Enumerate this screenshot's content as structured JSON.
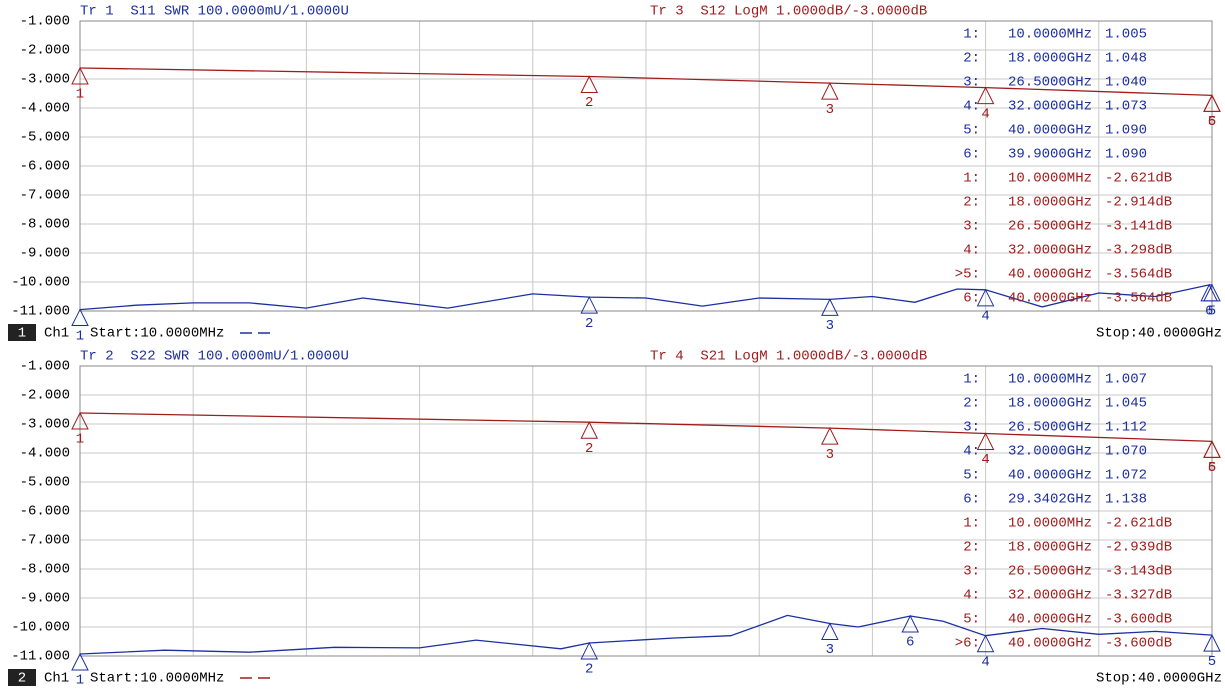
{
  "chart_data": [
    {
      "type": "line",
      "header_left": "Tr 1  S11 SWR 100.0000mU/1.0000U",
      "header_right": "Tr 3  S12 LogM 1.0000dB/-3.0000dB",
      "channel": "1",
      "channel_label": "Ch1",
      "start_label": "Start:10.0000MHz",
      "stop_label": "Stop:40.0000GHz",
      "xlim": [
        0.01,
        40
      ],
      "ylim": [
        -11,
        -1
      ],
      "y2lim": [
        1,
        2
      ],
      "yticks": [
        {
          "value": -1,
          "label": "-1.000"
        },
        {
          "value": -2,
          "label": "-2.000"
        },
        {
          "value": -3,
          "label": "-3.000"
        },
        {
          "value": -4,
          "label": "-4.000"
        },
        {
          "value": -5,
          "label": "-5.000"
        },
        {
          "value": -6,
          "label": "-6.000"
        },
        {
          "value": -7,
          "label": "-7.000"
        },
        {
          "value": -8,
          "label": "-8.000"
        },
        {
          "value": -9,
          "label": "-9.000"
        },
        {
          "value": -10,
          "label": "-10.000"
        },
        {
          "value": -11,
          "label": "-11.000"
        }
      ],
      "grid": true,
      "series": [
        {
          "color": "#1c2fa0",
          "axis": "y2",
          "x": [
            0.01,
            2,
            4,
            6,
            8,
            10,
            13,
            16,
            18,
            20,
            22,
            24,
            26.5,
            28,
            29.5,
            31,
            32,
            34,
            36,
            38,
            39.9,
            40
          ],
          "values": [
            1.005,
            1.02,
            1.028,
            1.028,
            1.01,
            1.045,
            1.01,
            1.059,
            1.048,
            1.045,
            1.017,
            1.045,
            1.04,
            1.05,
            1.03,
            1.076,
            1.073,
            1.014,
            1.062,
            1.05,
            1.09,
            1.09
          ],
          "markers": [
            {
              "name": "1",
              "label": "1:",
              "x": 0.01,
              "value": 1.005,
              "x_label": "10.0000MHz",
              "value_label": "1.005"
            },
            {
              "name": "2",
              "label": "2:",
              "x": 18,
              "value": 1.048,
              "x_label": "18.0000GHz",
              "value_label": "1.048"
            },
            {
              "name": "3",
              "label": "3:",
              "x": 26.5,
              "value": 1.04,
              "x_label": "26.5000GHz",
              "value_label": "1.040"
            },
            {
              "name": "4",
              "label": "4:",
              "x": 32,
              "value": 1.073,
              "x_label": "32.0000GHz",
              "value_label": "1.073"
            },
            {
              "name": "5",
              "label": "5:",
              "x": 40,
              "value": 1.09,
              "x_label": "40.0000GHz",
              "value_label": "1.090"
            },
            {
              "name": "6",
              "label": "6:",
              "x": 39.9,
              "value": 1.09,
              "x_label": "39.9000GHz",
              "value_label": "1.090"
            }
          ]
        },
        {
          "color": "#a01c1c",
          "x": [
            0.01,
            18,
            26.5,
            32,
            40
          ],
          "values": [
            -2.621,
            -2.914,
            -3.141,
            -3.298,
            -3.564
          ],
          "markers": [
            {
              "name": "1",
              "label": "1:",
              "x": 0.01,
              "value": -2.621,
              "x_label": "10.0000MHz",
              "value_label": "-2.621dB"
            },
            {
              "name": "2",
              "label": "2:",
              "x": 18,
              "value": -2.914,
              "x_label": "18.0000GHz",
              "value_label": "-2.914dB"
            },
            {
              "name": "3",
              "label": "3:",
              "x": 26.5,
              "value": -3.141,
              "x_label": "26.5000GHz",
              "value_label": "-3.141dB"
            },
            {
              "name": "4",
              "label": "4:",
              "x": 32,
              "value": -3.298,
              "x_label": "32.0000GHz",
              "value_label": "-3.298dB"
            },
            {
              "name": "5",
              "label": ">5:",
              "x": 40,
              "value": -3.564,
              "x_label": "40.0000GHz",
              "value_label": "-3.564dB"
            },
            {
              "name": "6",
              "label": "6:",
              "x": 40,
              "value": -3.564,
              "x_label": "40.0000GHz",
              "value_label": "-3.564dB"
            }
          ]
        }
      ]
    },
    {
      "type": "line",
      "header_left": "Tr 2  S22 SWR 100.0000mU/1.0000U",
      "header_right": "Tr 4  S21 LogM 1.0000dB/-3.0000dB",
      "channel": "2",
      "channel_label": "Ch1",
      "start_label": "Start:10.0000MHz",
      "stop_label": "Stop:40.0000GHz",
      "xlim": [
        0.01,
        40
      ],
      "ylim": [
        -11,
        -1
      ],
      "y2lim": [
        1,
        2
      ],
      "yticks": [
        {
          "value": -1,
          "label": "-1.000"
        },
        {
          "value": -2,
          "label": "-2.000"
        },
        {
          "value": -3,
          "label": "-3.000"
        },
        {
          "value": -4,
          "label": "-4.000"
        },
        {
          "value": -5,
          "label": "-5.000"
        },
        {
          "value": -6,
          "label": "-6.000"
        },
        {
          "value": -7,
          "label": "-7.000"
        },
        {
          "value": -8,
          "label": "-8.000"
        },
        {
          "value": -9,
          "label": "-9.000"
        },
        {
          "value": -10,
          "label": "-10.000"
        },
        {
          "value": -11,
          "label": "-11.000"
        }
      ],
      "grid": true,
      "series": [
        {
          "color": "#1c2fa0",
          "axis": "y2",
          "x": [
            0.01,
            3,
            6,
            9,
            12,
            14,
            17,
            18,
            21,
            23,
            25,
            26.5,
            27.5,
            29.3402,
            30.5,
            32,
            34,
            36,
            38,
            40
          ],
          "values": [
            1.007,
            1.02,
            1.013,
            1.03,
            1.028,
            1.055,
            1.025,
            1.045,
            1.062,
            1.07,
            1.14,
            1.112,
            1.1,
            1.138,
            1.12,
            1.07,
            1.095,
            1.075,
            1.085,
            1.072
          ],
          "markers": [
            {
              "name": "1",
              "label": "1:",
              "x": 0.01,
              "value": 1.007,
              "x_label": "10.0000MHz",
              "value_label": "1.007"
            },
            {
              "name": "2",
              "label": "2:",
              "x": 18,
              "value": 1.045,
              "x_label": "18.0000GHz",
              "value_label": "1.045"
            },
            {
              "name": "3",
              "label": "3:",
              "x": 26.5,
              "value": 1.112,
              "x_label": "26.5000GHz",
              "value_label": "1.112"
            },
            {
              "name": "4",
              "label": "4:",
              "x": 32,
              "value": 1.07,
              "x_label": "32.0000GHz",
              "value_label": "1.070"
            },
            {
              "name": "5",
              "label": "5:",
              "x": 40,
              "value": 1.072,
              "x_label": "40.0000GHz",
              "value_label": "1.072"
            },
            {
              "name": "6",
              "label": "6:",
              "x": 29.3402,
              "value": 1.138,
              "x_label": "29.3402GHz",
              "value_label": "1.138"
            }
          ]
        },
        {
          "color": "#a01c1c",
          "x": [
            0.01,
            18,
            26.5,
            32,
            40
          ],
          "values": [
            -2.621,
            -2.939,
            -3.143,
            -3.327,
            -3.6
          ],
          "markers": [
            {
              "name": "1",
              "label": "1:",
              "x": 0.01,
              "value": -2.621,
              "x_label": "10.0000MHz",
              "value_label": "-2.621dB"
            },
            {
              "name": "2",
              "label": "2:",
              "x": 18,
              "value": -2.939,
              "x_label": "18.0000GHz",
              "value_label": "-2.939dB"
            },
            {
              "name": "3",
              "label": "3:",
              "x": 26.5,
              "value": -3.143,
              "x_label": "26.5000GHz",
              "value_label": "-3.143dB"
            },
            {
              "name": "4",
              "label": "4:",
              "x": 32,
              "value": -3.327,
              "x_label": "32.0000GHz",
              "value_label": "-3.327dB"
            },
            {
              "name": "5",
              "label": "5:",
              "x": 40,
              "value": -3.6,
              "x_label": "40.0000GHz",
              "value_label": "-3.600dB"
            },
            {
              "name": "6",
              "label": ">6:",
              "x": 40,
              "value": -3.6,
              "x_label": "40.0000GHz",
              "value_label": "-3.600dB"
            }
          ]
        }
      ]
    }
  ]
}
